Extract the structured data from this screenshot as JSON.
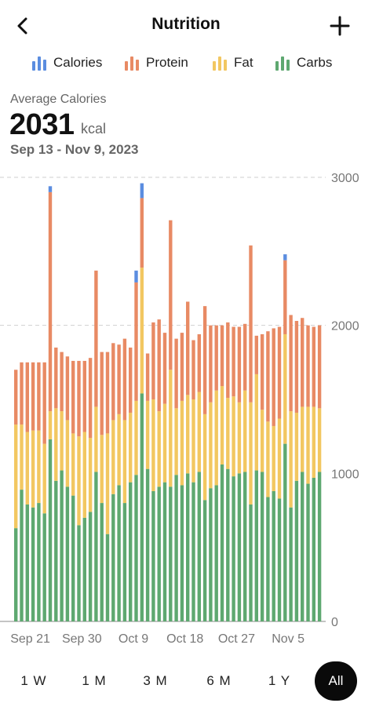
{
  "header": {
    "title": "Nutrition",
    "back_icon": "chevron-left-icon",
    "add_icon": "plus-icon"
  },
  "legend": [
    {
      "label": "Calories",
      "color": "#5b8de0"
    },
    {
      "label": "Protein",
      "color": "#e88a64"
    },
    {
      "label": "Fat",
      "color": "#f2c761"
    },
    {
      "label": "Carbs",
      "color": "#5ea870"
    }
  ],
  "summary": {
    "label": "Average Calories",
    "value": "2031",
    "unit": "kcal",
    "range": "Sep 13 - Nov 9, 2023"
  },
  "chart_data": {
    "type": "bar",
    "stacked": true,
    "start_date": "2023-09-13",
    "x_tick_labels": [
      "Sep 21",
      "Sep 30",
      "Oct 9",
      "Oct 18",
      "Oct 27",
      "Nov 5"
    ],
    "y_tick_labels": [
      "3000",
      "2000",
      "1000",
      "0"
    ],
    "ylim": [
      0,
      3000
    ],
    "gridlines": [
      2000,
      3000
    ],
    "series": [
      {
        "name": "Carbs",
        "color": "#5ea870",
        "values": [
          630,
          890,
          790,
          770,
          800,
          730,
          1230,
          950,
          1020,
          910,
          850,
          650,
          700,
          740,
          1010,
          800,
          590,
          860,
          920,
          800,
          940,
          990,
          1540,
          1030,
          880,
          910,
          940,
          910,
          990,
          920,
          1000,
          940,
          1010,
          820,
          900,
          920,
          1060,
          1030,
          980,
          1000,
          1010,
          790,
          1020,
          1010,
          840,
          880,
          830,
          1200,
          770,
          950,
          1010,
          930,
          970,
          1010
        ]
      },
      {
        "name": "Fat",
        "color": "#f2c761",
        "values": [
          700,
          440,
          490,
          520,
          490,
          470,
          190,
          490,
          400,
          450,
          420,
          600,
          580,
          500,
          440,
          460,
          680,
          500,
          480,
          560,
          470,
          500,
          850,
          460,
          620,
          510,
          530,
          790,
          450,
          570,
          530,
          560,
          540,
          580,
          580,
          640,
          530,
          480,
          540,
          480,
          550,
          690,
          650,
          420,
          510,
          440,
          540,
          740,
          650,
          460,
          440,
          520,
          480,
          430
        ]
      },
      {
        "name": "Protein",
        "color": "#e88a64",
        "values": [
          370,
          420,
          470,
          460,
          460,
          550,
          1480,
          410,
          400,
          430,
          490,
          510,
          480,
          540,
          920,
          560,
          550,
          520,
          470,
          550,
          440,
          800,
          470,
          320,
          520,
          620,
          480,
          1010,
          470,
          460,
          630,
          400,
          390,
          730,
          520,
          440,
          410,
          510,
          470,
          510,
          450,
          1060,
          260,
          510,
          610,
          660,
          620,
          500,
          650,
          620,
          600,
          550,
          540,
          560
        ]
      },
      {
        "name": "Calories",
        "color": "#5b8de0",
        "values": [
          0,
          0,
          0,
          0,
          0,
          0,
          40,
          0,
          0,
          0,
          0,
          0,
          0,
          0,
          0,
          0,
          0,
          0,
          0,
          0,
          0,
          80,
          100,
          0,
          0,
          0,
          0,
          0,
          0,
          0,
          0,
          0,
          0,
          0,
          0,
          0,
          0,
          0,
          0,
          0,
          0,
          0,
          0,
          0,
          0,
          0,
          0,
          40,
          0,
          0,
          0,
          0,
          0,
          0
        ]
      }
    ]
  },
  "time_ranges": [
    {
      "label": "1 W",
      "active": false
    },
    {
      "label": "1 M",
      "active": false
    },
    {
      "label": "3 M",
      "active": false
    },
    {
      "label": "6 M",
      "active": false
    },
    {
      "label": "1 Y",
      "active": false
    },
    {
      "label": "All",
      "active": true
    }
  ]
}
